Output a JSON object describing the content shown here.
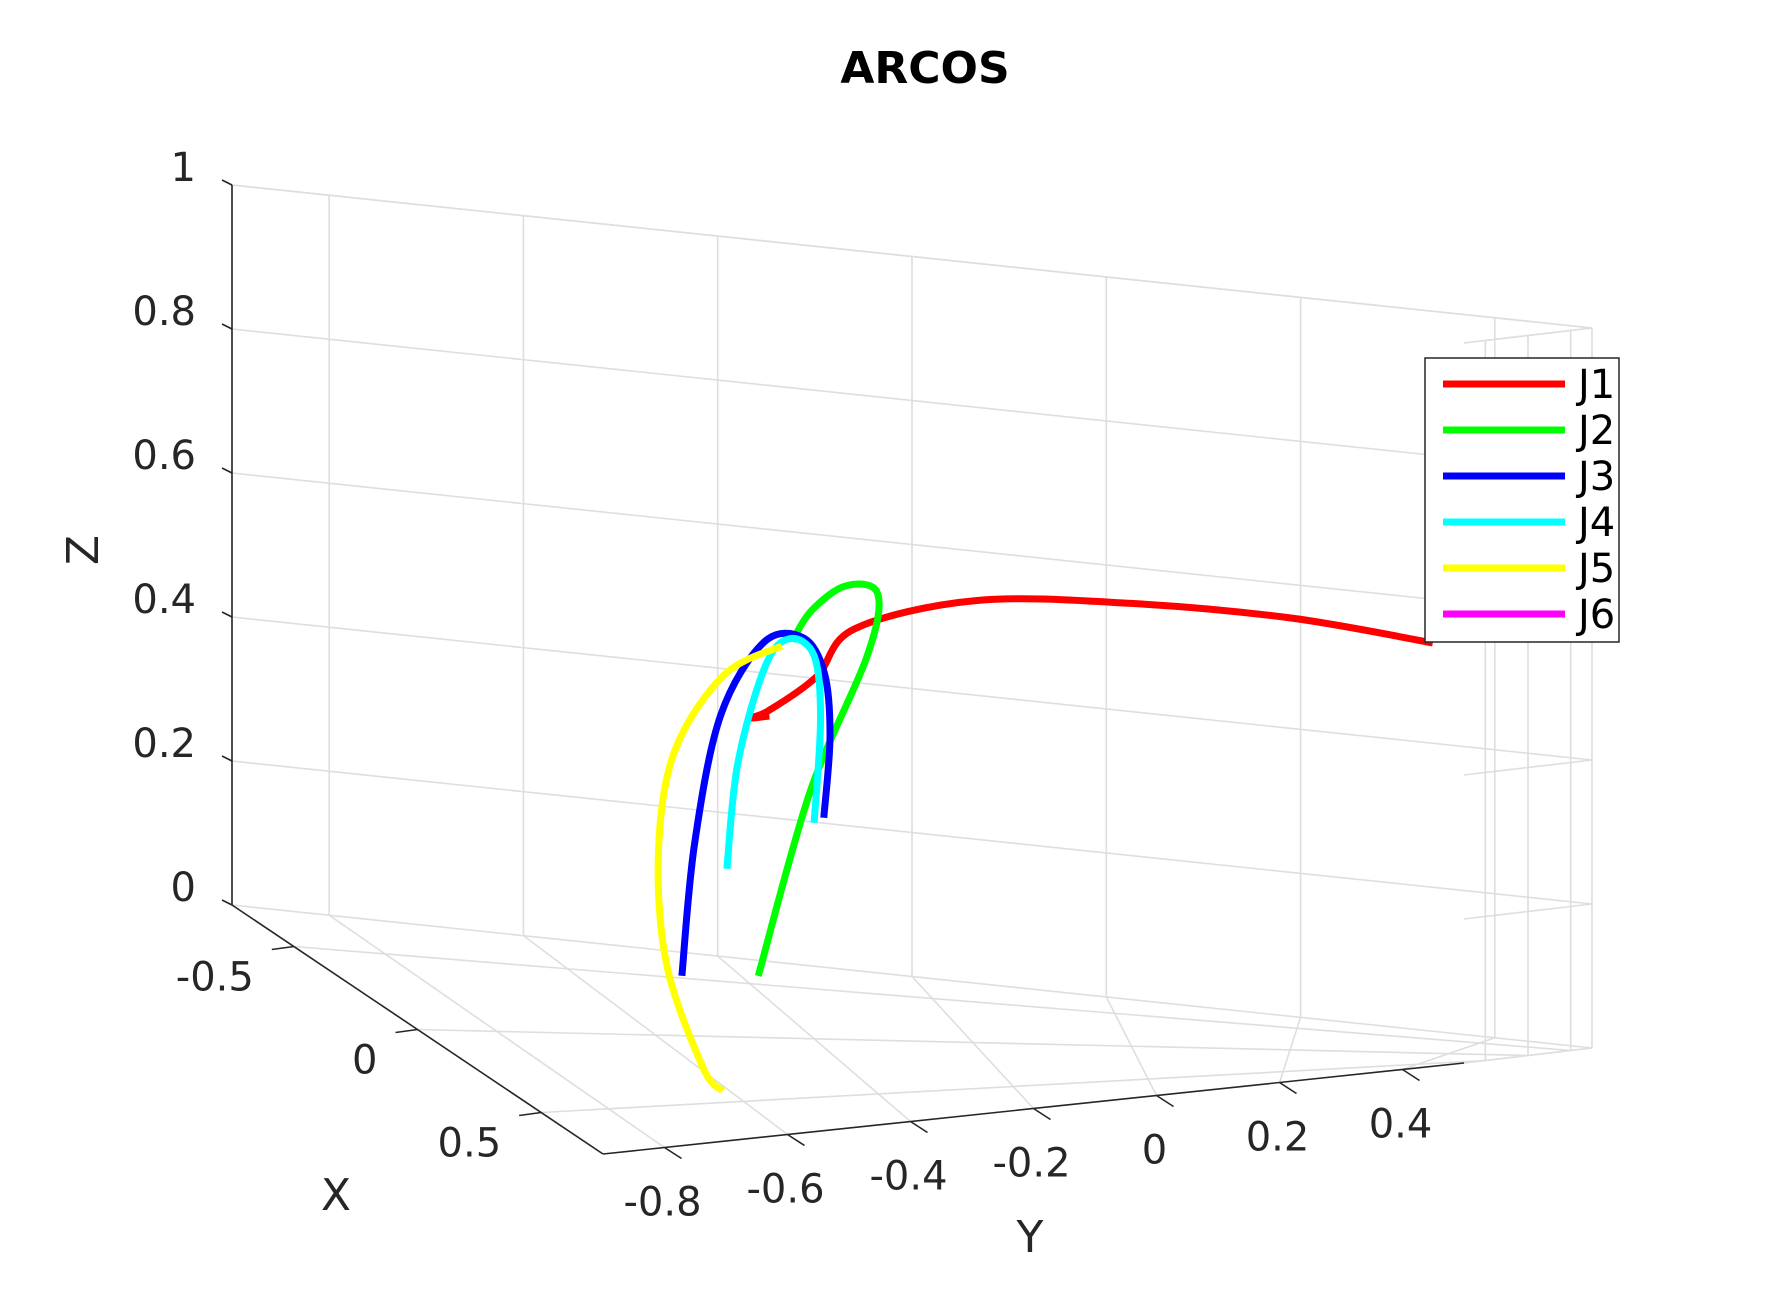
{
  "chart_data": {
    "type": "line",
    "title": "ARCOS",
    "xlabel": "X",
    "ylabel": "Y",
    "zlabel": "Z",
    "xlim": [
      -0.75,
      0.75
    ],
    "ylim": [
      -0.9,
      0.5
    ],
    "zlim": [
      0,
      1
    ],
    "x_ticks": [
      {
        "v": -0.5,
        "label": "-0.5"
      },
      {
        "v": 0,
        "label": "0"
      },
      {
        "v": 0.5,
        "label": "0.5"
      }
    ],
    "y_ticks": [
      {
        "v": -0.8,
        "label": "-0.8"
      },
      {
        "v": -0.6,
        "label": "-0.6"
      },
      {
        "v": -0.4,
        "label": "-0.4"
      },
      {
        "v": -0.2,
        "label": "-0.2"
      },
      {
        "v": 0,
        "label": "0"
      },
      {
        "v": 0.2,
        "label": "0.2"
      },
      {
        "v": 0.4,
        "label": "0.4"
      }
    ],
    "z_ticks": [
      {
        "v": 0,
        "label": "0"
      },
      {
        "v": 0.2,
        "label": "0.2"
      },
      {
        "v": 0.4,
        "label": "0.4"
      },
      {
        "v": 0.6,
        "label": "0.6"
      },
      {
        "v": 0.8,
        "label": "0.8"
      },
      {
        "v": 1,
        "label": "1"
      }
    ],
    "grid": true,
    "legend_position": "right",
    "series": [
      {
        "name": "J1",
        "color": "#ff0000",
        "points": [
          [
            0.0,
            0.38,
            0.57
          ],
          [
            0.0,
            0.2,
            0.6
          ],
          [
            0.0,
            0.0,
            0.615
          ],
          [
            0.05,
            -0.2,
            0.62
          ],
          [
            0.2,
            -0.38,
            0.6
          ],
          [
            0.3,
            -0.45,
            0.55
          ],
          [
            0.22,
            -0.5,
            0.49
          ],
          [
            0.1,
            -0.5,
            0.46
          ],
          [
            0.02,
            -0.46,
            0.45
          ]
        ]
      },
      {
        "name": "J2",
        "color": "#00ff00",
        "points": [
          [
            -0.3,
            -0.42,
            0.04
          ],
          [
            -0.3,
            -0.36,
            0.3
          ],
          [
            -0.25,
            -0.3,
            0.5
          ],
          [
            -0.15,
            -0.3,
            0.6
          ],
          [
            0.0,
            -0.36,
            0.63
          ],
          [
            0.1,
            -0.42,
            0.61
          ],
          [
            0.18,
            -0.46,
            0.58
          ]
        ]
      },
      {
        "name": "J3",
        "color": "#0000ff",
        "points": [
          [
            0.15,
            -0.6,
            0.11
          ],
          [
            0.18,
            -0.59,
            0.3
          ],
          [
            0.2,
            -0.56,
            0.48
          ],
          [
            0.19,
            -0.5,
            0.58
          ],
          [
            0.15,
            -0.44,
            0.58
          ],
          [
            0.08,
            -0.4,
            0.52
          ],
          [
            0.0,
            -0.38,
            0.42
          ],
          [
            -0.05,
            -0.38,
            0.3
          ]
        ]
      },
      {
        "name": "J4",
        "color": "#00ffff",
        "points": [
          [
            0.1,
            -0.53,
            0.25
          ],
          [
            0.12,
            -0.52,
            0.4
          ],
          [
            0.15,
            -0.49,
            0.54
          ],
          [
            0.16,
            -0.46,
            0.58
          ],
          [
            0.12,
            -0.42,
            0.55
          ],
          [
            0.05,
            -0.4,
            0.45
          ],
          [
            0.0,
            -0.4,
            0.3
          ]
        ]
      },
      {
        "name": "J5",
        "color": "#ffff00",
        "points": [
          [
            0.42,
            -0.61,
            0.0
          ],
          [
            0.5,
            -0.66,
            0.05
          ],
          [
            0.52,
            -0.72,
            0.2
          ],
          [
            0.48,
            -0.72,
            0.35
          ],
          [
            0.35,
            -0.66,
            0.46
          ],
          [
            0.22,
            -0.56,
            0.54
          ],
          [
            0.16,
            -0.47,
            0.57
          ]
        ]
      },
      {
        "name": "J6",
        "color": "#ff00ff",
        "points": []
      }
    ]
  }
}
